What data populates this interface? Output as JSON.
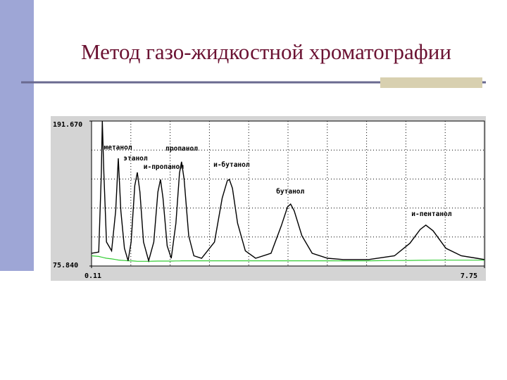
{
  "chart_data": {
    "type": "line",
    "title": "Метод газо-жидкостной хроматографии",
    "xlim": [
      0.11,
      7.75
    ],
    "ylim": [
      75.84,
      191.67
    ],
    "xticks": [
      0.11,
      7.75
    ],
    "yticks": [
      {
        "value": 191.67,
        "label": "191.670"
      },
      {
        "value": 75.84,
        "label": "75.840"
      }
    ],
    "x": [
      0.11,
      0.25,
      0.3,
      0.32,
      0.35,
      0.4,
      0.5,
      0.58,
      0.63,
      0.68,
      0.75,
      0.82,
      0.88,
      0.95,
      1.0,
      1.05,
      1.12,
      1.22,
      1.32,
      1.4,
      1.45,
      1.5,
      1.58,
      1.66,
      1.75,
      1.82,
      1.86,
      1.91,
      2.0,
      2.1,
      2.25,
      2.5,
      2.65,
      2.75,
      2.79,
      2.85,
      2.95,
      3.1,
      3.3,
      3.6,
      3.8,
      3.92,
      3.98,
      4.05,
      4.2,
      4.4,
      4.7,
      5.0,
      5.5,
      6.0,
      6.3,
      6.5,
      6.61,
      6.75,
      7.0,
      7.3,
      7.6,
      7.75
    ],
    "series": [
      {
        "color": "#000000",
        "values": [
          86,
          87,
          150,
          191.67,
          150,
          95,
          88,
          120,
          161.9,
          120,
          90,
          80,
          95,
          140,
          150.6,
          135,
          95,
          80,
          95,
          135,
          145,
          130,
          92,
          82,
          110,
          150,
          159.1,
          145,
          100,
          84,
          82,
          95,
          130,
          144,
          145,
          138,
          110,
          88,
          82,
          86,
          108,
          123,
          125.3,
          120,
          100,
          86,
          82,
          81,
          81,
          84,
          94,
          105,
          108.5,
          104,
          90,
          84,
          82,
          81
        ]
      },
      {
        "color": "#33cc33",
        "values": [
          84,
          83.5,
          83,
          82.8,
          82.5,
          82,
          81.5,
          81,
          80.6,
          80.4,
          80.2,
          80,
          80,
          79.8,
          79.6,
          79.6,
          79.6,
          79.6,
          79.7,
          79.8,
          79.8,
          79.8,
          79.8,
          79.8,
          79.9,
          79.9,
          80,
          80,
          80,
          80,
          80,
          80,
          80,
          80,
          80,
          80,
          80,
          80,
          80,
          80,
          80,
          80,
          80,
          80,
          80,
          80,
          80,
          80,
          80,
          80.2,
          80.3,
          80.4,
          80.4,
          80.5,
          80.5,
          80.5,
          80.5,
          80.5
        ]
      }
    ],
    "annotations": [
      {
        "text": "метанол",
        "x": 0.35,
        "y": 168.9
      },
      {
        "text": "этанол",
        "x": 0.73,
        "y": 160.2
      },
      {
        "text": "и-пропанол",
        "x": 1.12,
        "y": 153.4
      },
      {
        "text": "пропанол",
        "x": 1.55,
        "y": 168.0
      },
      {
        "text": "и-бутанол",
        "x": 2.48,
        "y": 155.1
      },
      {
        "text": "бутанол",
        "x": 3.7,
        "y": 133.8
      },
      {
        "text": "и-пентанол",
        "x": 6.33,
        "y": 115.8
      }
    ]
  }
}
